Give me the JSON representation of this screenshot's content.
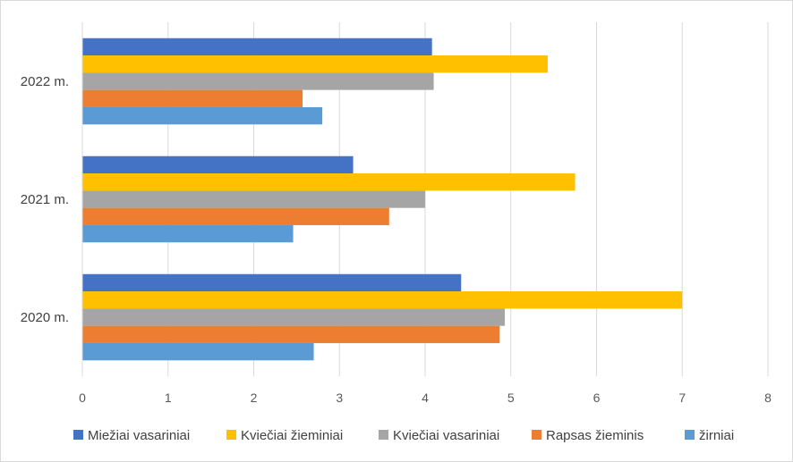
{
  "chart_data": {
    "type": "bar",
    "orientation": "horizontal",
    "categories": [
      "2020 m.",
      "2021 m.",
      "2022 m."
    ],
    "series": [
      {
        "name": "Miežiai vasariniai",
        "color": "#4472C4",
        "values": [
          4.42,
          3.16,
          4.08
        ]
      },
      {
        "name": "Kviečiai žieminiai",
        "color": "#FFC000",
        "values": [
          7.0,
          5.75,
          5.43
        ]
      },
      {
        "name": "Kviečiai vasariniai",
        "color": "#A5A5A5",
        "values": [
          4.93,
          4.0,
          4.1
        ]
      },
      {
        "name": "Rapsas žieminis",
        "color": "#ED7D31",
        "values": [
          4.87,
          3.58,
          2.57
        ]
      },
      {
        "name": "žirniai",
        "color": "#5B9BD5",
        "values": [
          2.7,
          2.46,
          2.8
        ]
      }
    ],
    "xlim": [
      0,
      8
    ],
    "x_ticks": [
      0,
      1,
      2,
      3,
      4,
      5,
      6,
      7,
      8
    ],
    "grid": "vertical",
    "legend_position": "bottom",
    "title": "",
    "xlabel": "",
    "ylabel": ""
  }
}
